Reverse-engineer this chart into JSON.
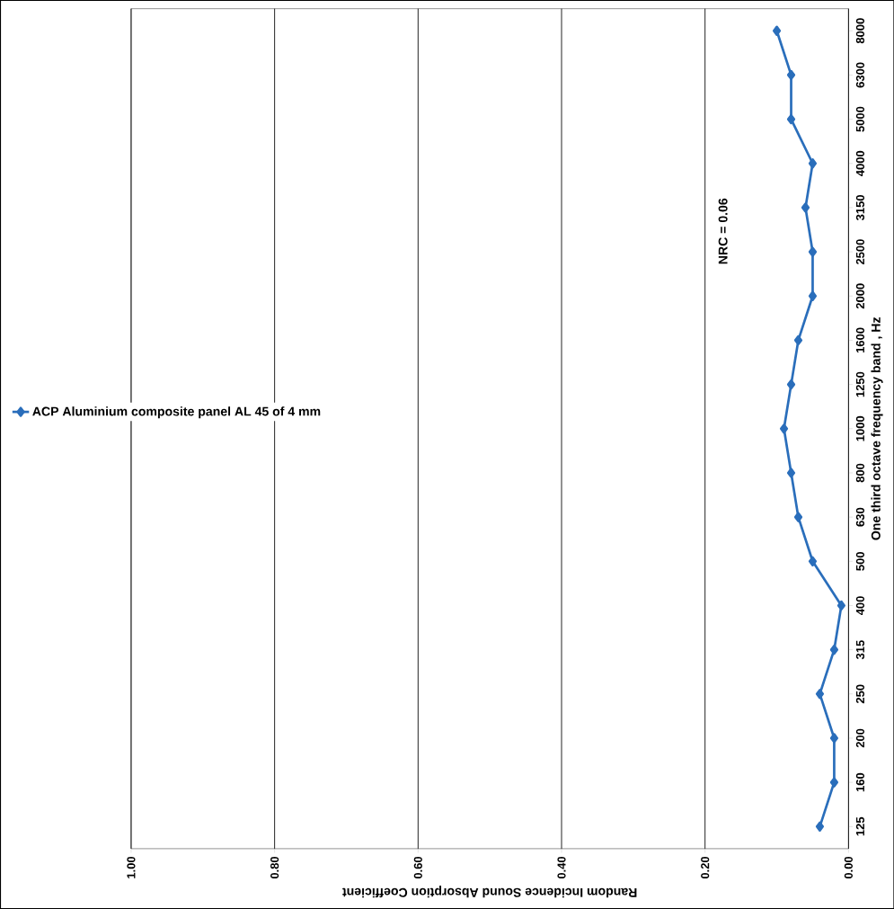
{
  "chart_data": {
    "type": "line",
    "orientation": "horizontal",
    "categories": [
      "8000",
      "6300",
      "5000",
      "4000",
      "3150",
      "2500",
      "2000",
      "1600",
      "1250",
      "1000",
      "800",
      "630",
      "500",
      "400",
      "315",
      "250",
      "200",
      "160",
      "125"
    ],
    "series": [
      {
        "name": "ACP Aluminium composite panel AL 45 of 4 mm",
        "color": "#2a6ebb",
        "values": [
          0.1,
          0.08,
          0.08,
          0.05,
          0.06,
          0.05,
          0.05,
          0.07,
          0.08,
          0.09,
          0.08,
          0.07,
          0.05,
          0.01,
          0.02,
          0.04,
          0.02,
          0.02,
          0.04
        ]
      }
    ],
    "ylabel": "One third octave frequency band , Hz",
    "xlabel": "Random Incidence Sound Absorption Coefficient",
    "xlim": [
      1,
      0
    ],
    "xticks": [
      {
        "value": 0,
        "label": "0.00"
      },
      {
        "value": 0.2,
        "label": "0.20"
      },
      {
        "value": 0.4,
        "label": "0.40"
      },
      {
        "value": 0.6,
        "label": "0.60"
      },
      {
        "value": 0.8,
        "label": "0.80"
      },
      {
        "value": 1,
        "label": "1.00"
      }
    ],
    "annotations": [
      "NRC = 0.06"
    ],
    "grid": "x",
    "legend": "left",
    "marker": "diamond",
    "line_style": "solid"
  }
}
